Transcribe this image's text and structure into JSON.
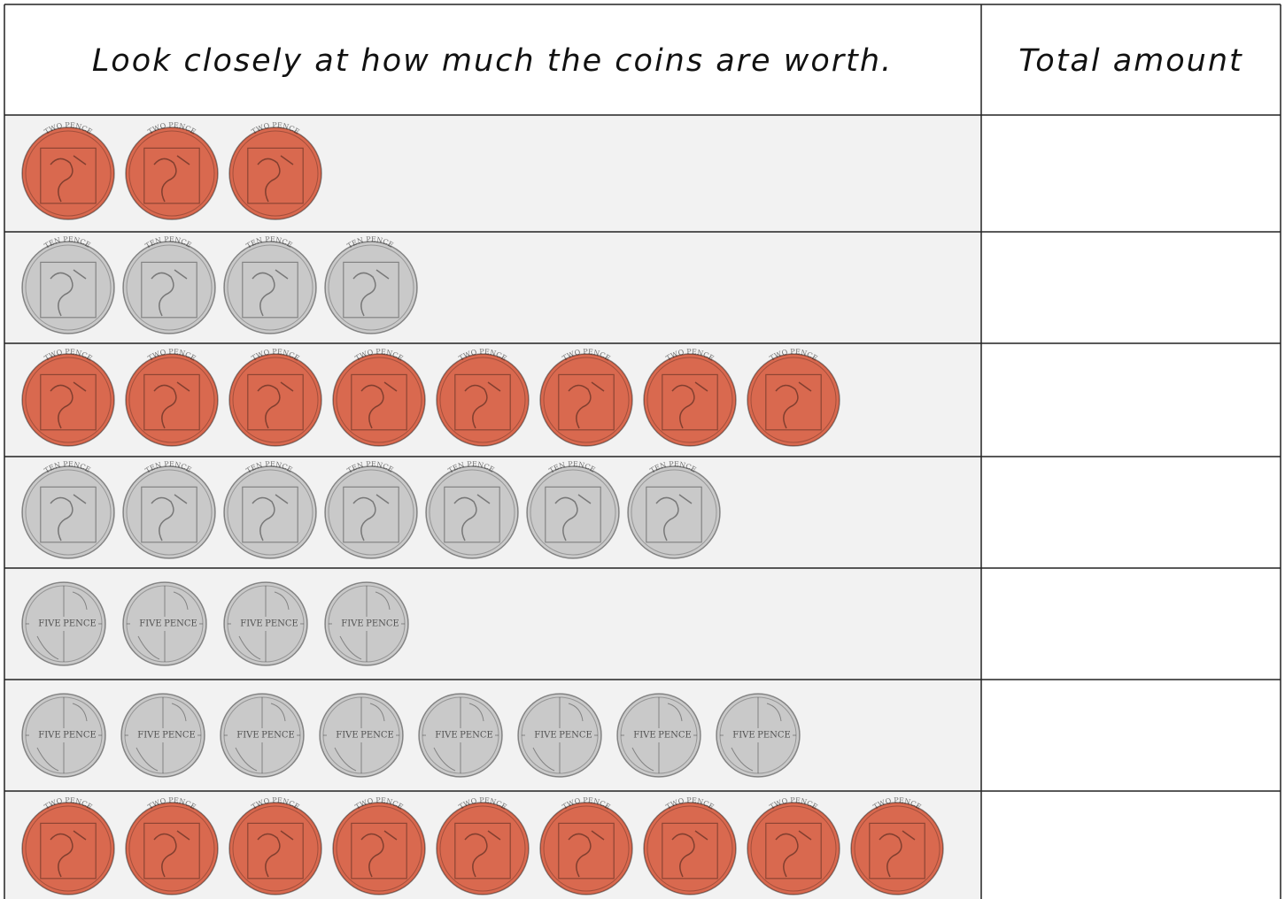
{
  "header": {
    "title": "Look closely at how much the coins are worth.",
    "total": "Total amount"
  },
  "rows": [
    {
      "inscription": [
        "TWO PENCE"
      ],
      "count": 3,
      "color": "#d9694f"
    },
    {
      "inscription": [
        "TEN PENCE"
      ],
      "count": 4,
      "color": "#c9c9c9"
    },
    {
      "inscription": [
        "TWO PENCE"
      ],
      "count": 8,
      "color": "#d9694f"
    },
    {
      "inscription": [
        "TEN PENCE"
      ],
      "count": 7,
      "color": "#c9c9c9"
    },
    {
      "inscription": [
        "FIVE",
        "PENCE"
      ],
      "count": 4,
      "color": "#c9c9c9"
    },
    {
      "inscription": [
        "FIVE",
        "PENCE"
      ],
      "count": 8,
      "color": "#c9c9c9"
    },
    {
      "inscription": [
        "TWO PENCE"
      ],
      "count": 9,
      "color": "#d9694f"
    }
  ]
}
